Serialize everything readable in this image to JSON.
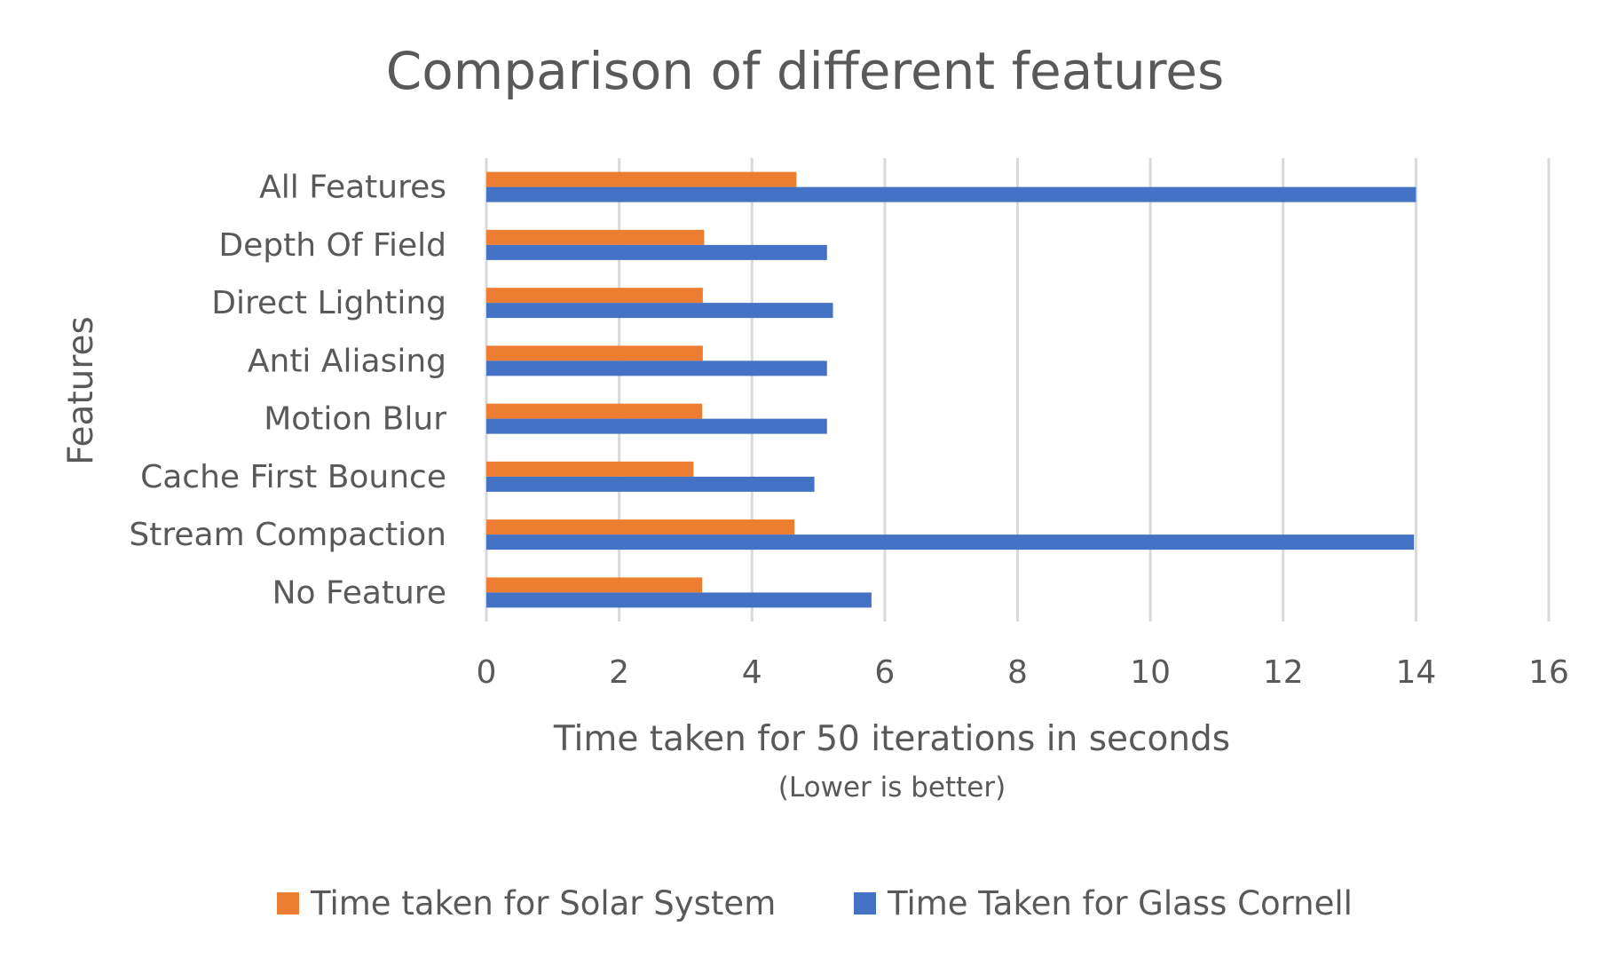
{
  "chart_data": {
    "type": "bar",
    "orientation": "horizontal",
    "title": "Comparison of different features",
    "xlabel": "Time taken for 50 iterations in seconds",
    "xlabel_note": "(Lower is better)",
    "ylabel": "Features",
    "xlim": [
      0,
      16
    ],
    "xticks": [
      "0",
      "2",
      "4",
      "6",
      "8",
      "10",
      "12",
      "14",
      "16"
    ],
    "grid": "vertical",
    "legend_position": "bottom",
    "categories": [
      "All Features",
      "Depth Of Field",
      "Direct Lighting",
      "Anti Aliasing",
      "Motion Blur",
      "Cache First Bounce",
      "Stream Compaction",
      "No Feature"
    ],
    "series": [
      {
        "name": "Time taken for Solar System",
        "color": "#ED7D31",
        "values": [
          4.67,
          3.28,
          3.26,
          3.26,
          3.25,
          3.12,
          4.64,
          3.25
        ]
      },
      {
        "name": "Time Taken for Glass Cornell",
        "color": "#4472C4",
        "values": [
          14.0,
          5.13,
          5.22,
          5.13,
          5.13,
          4.94,
          13.97,
          5.8
        ]
      }
    ]
  }
}
